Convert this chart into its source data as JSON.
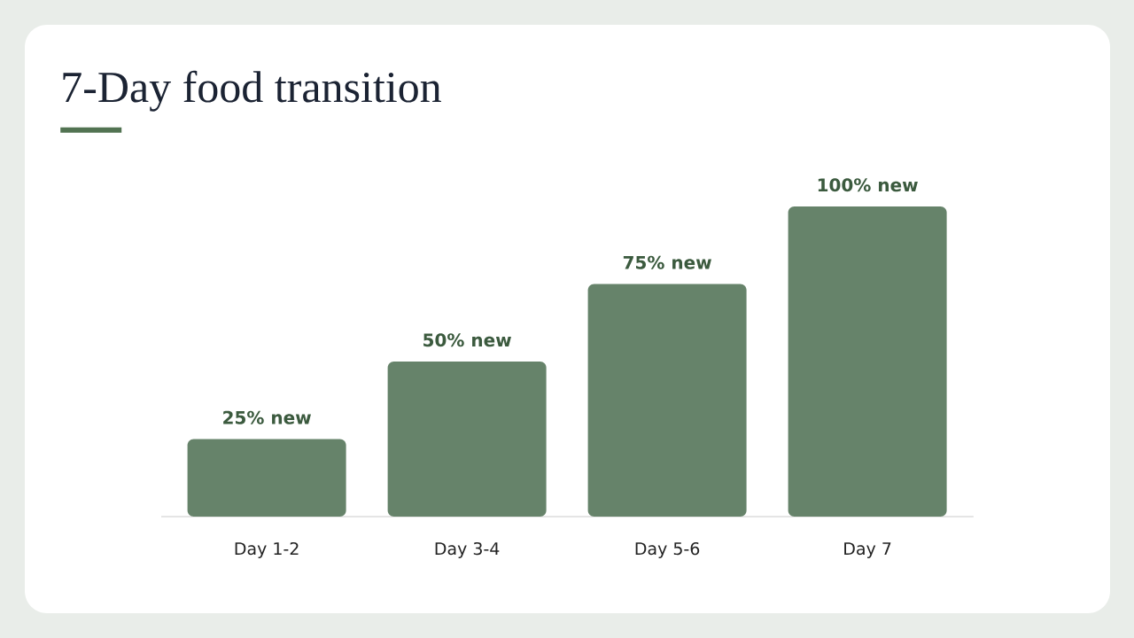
{
  "chart_data": {
    "type": "bar",
    "title": "7-Day food transition",
    "categories": [
      "Day 1-2",
      "Day 3-4",
      "Day 5-6",
      "Day 7"
    ],
    "values": [
      25,
      50,
      75,
      100
    ],
    "color": "#66836a",
    "ylim": [
      0,
      100
    ],
    "tick_labels": "x",
    "value_labels": [
      "25% new",
      "50% new",
      "75% new",
      "100% new"
    ]
  }
}
